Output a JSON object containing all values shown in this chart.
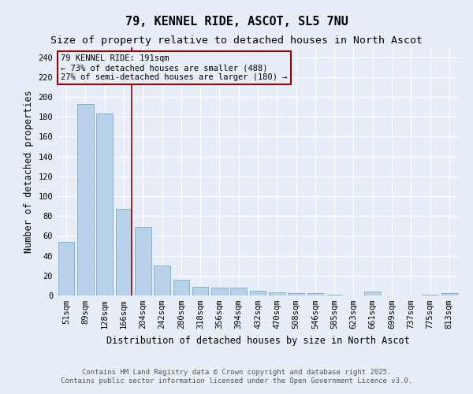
{
  "title": "79, KENNEL RIDE, ASCOT, SL5 7NU",
  "subtitle": "Size of property relative to detached houses in North Ascot",
  "xlabel": "Distribution of detached houses by size in North Ascot",
  "ylabel": "Number of detached properties",
  "categories": [
    "51sqm",
    "89sqm",
    "128sqm",
    "166sqm",
    "204sqm",
    "242sqm",
    "280sqm",
    "318sqm",
    "356sqm",
    "394sqm",
    "432sqm",
    "470sqm",
    "508sqm",
    "546sqm",
    "585sqm",
    "623sqm",
    "661sqm",
    "699sqm",
    "737sqm",
    "775sqm",
    "813sqm"
  ],
  "values": [
    54,
    193,
    183,
    87,
    69,
    30,
    16,
    9,
    8,
    8,
    5,
    3,
    2,
    2,
    1,
    0,
    4,
    0,
    0,
    1,
    2
  ],
  "bar_color": "#b8d0e8",
  "bar_edge_color": "#7aabcf",
  "background_color": "#e8eef8",
  "grid_color": "#ffffff",
  "vline_x_index": 3,
  "vline_color": "#990000",
  "annotation_text": "79 KENNEL RIDE: 191sqm\n← 73% of detached houses are smaller (488)\n27% of semi-detached houses are larger (180) →",
  "annotation_box_color": "#990000",
  "ylim": [
    0,
    250
  ],
  "yticks": [
    0,
    20,
    40,
    60,
    80,
    100,
    120,
    140,
    160,
    180,
    200,
    220,
    240
  ],
  "footer_text": "Contains HM Land Registry data © Crown copyright and database right 2025.\nContains public sector information licensed under the Open Government Licence v3.0.",
  "title_fontsize": 11,
  "subtitle_fontsize": 9.5,
  "axis_label_fontsize": 8.5,
  "tick_fontsize": 7.5,
  "annotation_fontsize": 7.5,
  "footer_fontsize": 6.5
}
